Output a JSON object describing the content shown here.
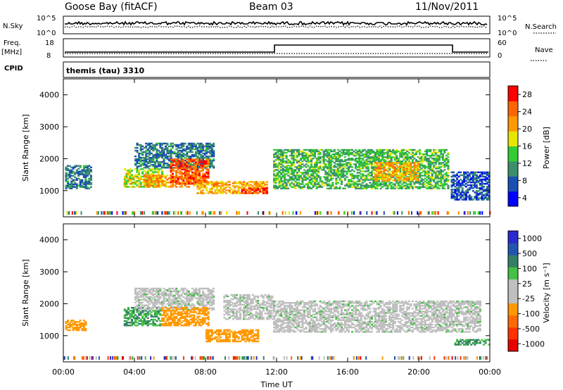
{
  "header": {
    "station": "Goose Bay (fitACF)",
    "beam": "Beam 03",
    "date": "11/Nov/2011"
  },
  "noise_panel": {
    "left_label": "N.Sky",
    "left_ticks": [
      "10^5",
      "10^0"
    ],
    "right_ticks": [
      "10^5",
      "10^0"
    ],
    "right_label": "N.Search",
    "series": [
      {
        "name": "N.Sky",
        "style": "solid"
      },
      {
        "name": "N.Search",
        "style": "dotted"
      }
    ]
  },
  "freq_panel": {
    "left_label_1": "Freq.",
    "left_label_2": "[MHz]",
    "left_ticks": [
      "18",
      "8"
    ],
    "right_ticks": [
      "60",
      "0"
    ],
    "right_label": "Nave",
    "cpid_label": "CPID"
  },
  "cpid_text": "themis (tau) 3310",
  "x_axis": {
    "ticks": [
      "00:00",
      "04:00",
      "08:00",
      "12:00",
      "16:00",
      "20:00",
      "00:00"
    ],
    "label": "Time UT"
  },
  "colors": {
    "power_scale": [
      "#0000ff",
      "#1a4fb3",
      "#3b8f6b",
      "#33cc33",
      "#e6e600",
      "#ff9900",
      "#ff6600",
      "#ff0000"
    ],
    "velocity_scale": [
      "#2a2ad0",
      "#2255b0",
      "#338066",
      "#44c044",
      "#bfbfbf",
      "#bfbfbf",
      "#ff9900",
      "#ff6a00",
      "#ff3300",
      "#e60000"
    ]
  },
  "chart_data": [
    {
      "type": "heatmap",
      "quantity": "Power",
      "ylabel": "Slant Range [km]",
      "xlabel": "Time UT",
      "xlim_hours": [
        0,
        24
      ],
      "ylim": [
        180,
        4500
      ],
      "yticks": [
        "4000",
        "3000",
        "2000",
        "1000"
      ],
      "colorbar": {
        "label": "Power [dB]",
        "ticks": [
          "28",
          "24",
          "20",
          "16",
          "12",
          "8",
          "4"
        ],
        "range": [
          0,
          30
        ]
      },
      "regions": [
        {
          "t0": 0.1,
          "t1": 1.6,
          "r0": 1050,
          "r1": 1800,
          "value": 8
        },
        {
          "t0": 3.4,
          "t1": 5.6,
          "r0": 1100,
          "r1": 1700,
          "value": 16
        },
        {
          "t0": 4.0,
          "t1": 8.5,
          "r0": 1700,
          "r1": 2500,
          "value": 8
        },
        {
          "t0": 4.5,
          "t1": 8.0,
          "r0": 1100,
          "r1": 1500,
          "value": 22
        },
        {
          "t0": 6.0,
          "t1": 8.2,
          "r0": 1200,
          "r1": 2000,
          "value": 25
        },
        {
          "t0": 7.5,
          "t1": 11.5,
          "r0": 900,
          "r1": 1300,
          "value": 20
        },
        {
          "t0": 10.0,
          "t1": 11.5,
          "r0": 900,
          "r1": 1100,
          "value": 27
        },
        {
          "t0": 11.8,
          "t1": 21.7,
          "r0": 1050,
          "r1": 2300,
          "value": 12
        },
        {
          "t0": 17.5,
          "t1": 20.0,
          "r0": 1300,
          "r1": 1900,
          "value": 20
        },
        {
          "t0": 21.8,
          "t1": 24.0,
          "r0": 700,
          "r1": 1600,
          "value": 6
        }
      ]
    },
    {
      "type": "heatmap",
      "quantity": "Velocity",
      "ylabel": "Slant Range [km]",
      "xlabel": "Time UT",
      "xlim_hours": [
        0,
        24
      ],
      "ylim": [
        180,
        4500
      ],
      "yticks": [
        "4000",
        "3000",
        "2000",
        "1000"
      ],
      "colorbar": {
        "label": "Velocity [m s⁻¹]",
        "ticks": [
          "1000",
          "500",
          "100",
          "25",
          "-25",
          "-100",
          "-500",
          "-1000"
        ],
        "range": [
          -1000,
          1000
        ]
      },
      "regions": [
        {
          "t0": 0.1,
          "t1": 1.3,
          "r0": 1150,
          "r1": 1500,
          "value": -150
        },
        {
          "t0": 3.4,
          "t1": 5.5,
          "r0": 1300,
          "r1": 1900,
          "value": 100
        },
        {
          "t0": 4.0,
          "t1": 8.5,
          "r0": 1800,
          "r1": 2500,
          "value": 0
        },
        {
          "t0": 5.5,
          "t1": 8.2,
          "r0": 1300,
          "r1": 1900,
          "value": -150
        },
        {
          "t0": 8.0,
          "t1": 11.0,
          "r0": 800,
          "r1": 1200,
          "value": -150
        },
        {
          "t0": 9.0,
          "t1": 11.8,
          "r0": 1500,
          "r1": 2300,
          "value": 0
        },
        {
          "t0": 11.8,
          "t1": 23.5,
          "r0": 1100,
          "r1": 2100,
          "value": 0
        },
        {
          "t0": 22.0,
          "t1": 24.0,
          "r0": 700,
          "r1": 900,
          "value": 100
        }
      ]
    }
  ]
}
